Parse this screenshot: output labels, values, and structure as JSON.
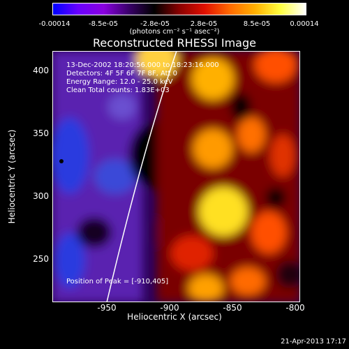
{
  "colorbar": {
    "ticks": [
      "-0.00014",
      "-8.5e-05",
      "-2.8e-05",
      "2.8e-05",
      "8.5e-05",
      "0.00014"
    ],
    "units": "(photons cm⁻² s⁻¹ asec⁻²)",
    "stops": [
      "#0000ff",
      "#6a00ff",
      "#8a00e0",
      "#3a006a",
      "#000000",
      "#8a0000",
      "#e01000",
      "#ff6a00",
      "#ffb000",
      "#ffff40",
      "#ffffff"
    ]
  },
  "title": "Reconstructed RHESSI Image",
  "annotations": {
    "time": "13-Dec-2002 18:20:56.000 to 18:23:16.000",
    "detectors": "Detectors: 4F 5F 6F 7F 8F, Att 0",
    "energy": "Energy Range: 12.0 - 25.0 keV",
    "clean": "Clean     Total counts: 1.83E+03",
    "peak": "Position of Peak = [-910,405]"
  },
  "axes": {
    "xlabel": "Heliocentric X (arcsec)",
    "ylabel": "Heliocentric Y (arcsec)",
    "xticks": [
      "-950",
      "-900",
      "-850",
      "-800"
    ],
    "yticks": [
      "400",
      "350",
      "300",
      "250"
    ]
  },
  "footer": {
    "date": "21-Apr-2013 17:17"
  }
}
